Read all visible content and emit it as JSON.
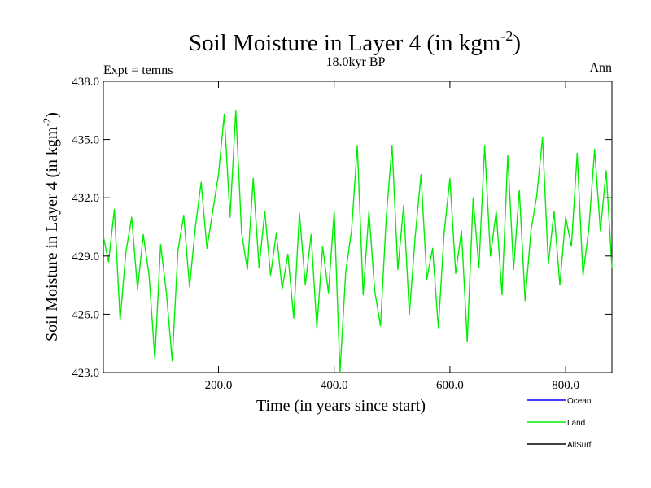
{
  "chart_data": {
    "type": "line",
    "title_main": "Soil Moisture in Layer 4 (in kgm",
    "title_sup": "-2",
    "title_close": ")",
    "subtitle": "18.0kyr BP",
    "left_note": "Expt = temns",
    "right_note": "Ann",
    "ylabel_main": "Soil Moisture in Layer 4 (in kgm",
    "ylabel_sup": "-2",
    "ylabel_close": ")",
    "xlabel": "Time (in years since start)",
    "xlim": [
      1,
      880
    ],
    "ylim": [
      423.0,
      438.0
    ],
    "xticks": [
      200,
      400,
      600,
      800
    ],
    "xtick_labels": [
      "200.0",
      "400.0",
      "600.0",
      "800.0"
    ],
    "yticks": [
      423,
      426,
      429,
      432,
      435,
      438
    ],
    "ytick_labels": [
      "423.0",
      "426.0",
      "429.0",
      "432.0",
      "435.0",
      "438.0"
    ],
    "legend": [
      {
        "name": "Ocean",
        "color": "#0000ff"
      },
      {
        "name": "Land",
        "color": "#00ee00"
      },
      {
        "name": "AllSurf",
        "color": "#000000"
      }
    ],
    "series": [
      {
        "name": "Land",
        "color": "#00ee00",
        "x": [
          1,
          10,
          20,
          30,
          40,
          50,
          60,
          70,
          80,
          90,
          100,
          110,
          120,
          130,
          140,
          150,
          160,
          170,
          180,
          190,
          200,
          210,
          220,
          230,
          240,
          250,
          260,
          270,
          280,
          290,
          300,
          310,
          320,
          330,
          340,
          350,
          360,
          370,
          380,
          390,
          400,
          410,
          420,
          430,
          440,
          450,
          460,
          470,
          480,
          490,
          500,
          510,
          520,
          530,
          540,
          550,
          560,
          570,
          580,
          590,
          600,
          610,
          620,
          630,
          640,
          650,
          660,
          670,
          680,
          690,
          700,
          710,
          720,
          730,
          740,
          750,
          760,
          770,
          780,
          790,
          800,
          810,
          820,
          830,
          840,
          850,
          860,
          870,
          880
        ],
        "values": [
          430.0,
          428.7,
          431.4,
          425.7,
          429.2,
          431.0,
          427.3,
          430.1,
          428.0,
          423.7,
          429.6,
          427.1,
          423.6,
          429.3,
          431.1,
          427.4,
          430.5,
          432.8,
          429.4,
          431.3,
          433.2,
          436.3,
          431.0,
          436.5,
          430.2,
          428.3,
          433.0,
          428.4,
          431.3,
          428.0,
          430.2,
          427.3,
          429.1,
          425.8,
          431.2,
          427.5,
          430.1,
          425.3,
          429.5,
          427.1,
          431.3,
          423.0,
          428.2,
          430.3,
          434.7,
          427.0,
          431.3,
          427.2,
          425.4,
          431.0,
          434.7,
          428.3,
          431.6,
          426.0,
          430.0,
          433.2,
          427.8,
          429.4,
          425.3,
          430.2,
          433.0,
          428.1,
          430.3,
          424.6,
          432.0,
          428.4,
          434.7,
          429.0,
          431.3,
          427.0,
          434.2,
          428.3,
          432.4,
          426.7,
          430.3,
          432.1,
          435.1,
          428.6,
          431.3,
          427.5,
          431.0,
          429.5,
          434.3,
          428.0,
          430.4,
          434.5,
          430.3,
          433.4,
          428.4
        ]
      }
    ]
  }
}
